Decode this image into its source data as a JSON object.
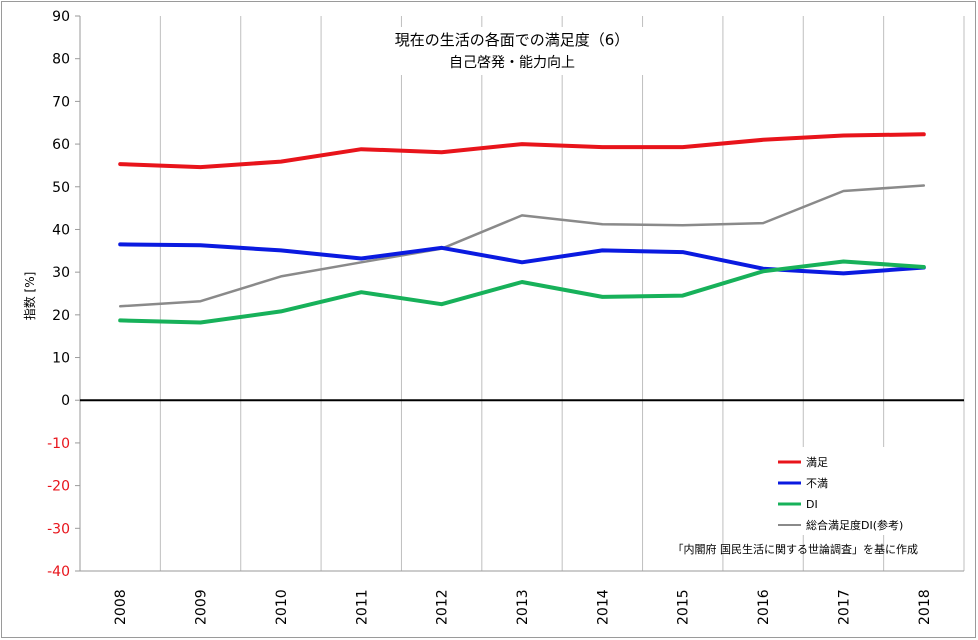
{
  "chart_data": {
    "type": "line",
    "title": "現在の生活の各面での満足度（6）",
    "subtitle": "自己啓発・能力向上",
    "ylabel": "指数 [%]",
    "xlabel": "",
    "ylim": [
      -40,
      90
    ],
    "yticks": [
      90,
      80,
      70,
      60,
      50,
      40,
      30,
      20,
      10,
      0,
      -10,
      -20,
      -30,
      -40
    ],
    "grid": "vertical",
    "legend_position": "bottom-right",
    "x": [
      "2008",
      "2009",
      "2010",
      "2011",
      "2012",
      "2013",
      "2014",
      "2015",
      "2016",
      "2017",
      "2018"
    ],
    "series": [
      {
        "name": "満足",
        "color": "#e8141b",
        "width": 4,
        "values": [
          55.3,
          54.6,
          55.9,
          58.8,
          58.1,
          60.0,
          59.3,
          59.3,
          61.0,
          62.0,
          62.3
        ]
      },
      {
        "name": "不満",
        "color": "#0a1ae0",
        "width": 4,
        "values": [
          36.5,
          36.3,
          35.1,
          33.2,
          35.7,
          32.3,
          35.1,
          34.7,
          30.8,
          29.7,
          31.1
        ]
      },
      {
        "name": "DI",
        "color": "#17b15a",
        "width": 4,
        "values": [
          18.7,
          18.2,
          20.8,
          25.3,
          22.5,
          27.7,
          24.2,
          24.5,
          30.2,
          32.5,
          31.2
        ]
      },
      {
        "name": "総合満足度DI(参考)",
        "color": "#8a8a8a",
        "width": 2.5,
        "values": [
          22.0,
          23.2,
          29.0,
          32.3,
          35.5,
          43.3,
          41.2,
          41.0,
          41.5,
          49.0,
          50.3
        ]
      }
    ],
    "colors": {
      "positive_tick": "#000000",
      "negative_tick": "#e8141b",
      "zero_line": "#000000",
      "grid": "#bfbfbf"
    },
    "source_note": "「内閣府 国民生活に関する世論調査」を基に作成"
  }
}
